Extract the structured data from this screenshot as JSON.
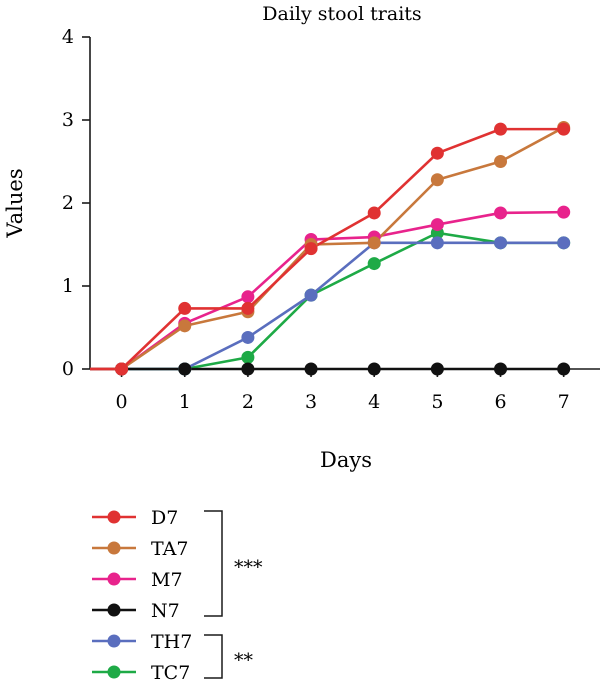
{
  "chart_data": {
    "type": "line",
    "title": "Daily stool traits",
    "xlabel": "Days",
    "ylabel": "Values",
    "xlim": [
      -0.5,
      7.1
    ],
    "ylim": [
      0,
      4
    ],
    "x_ticks": [
      "0",
      "1",
      "2",
      "3",
      "4",
      "5",
      "6",
      "7"
    ],
    "y_ticks": [
      "0",
      "1",
      "2",
      "3",
      "4"
    ],
    "x": [
      0,
      1,
      2,
      3,
      4,
      5,
      6,
      7
    ],
    "grid": false,
    "legend_position": "bottom-left",
    "series": [
      {
        "name": "D7",
        "color": "#e03232",
        "values": [
          0,
          0.73,
          0.73,
          1.45,
          1.88,
          2.6,
          2.89,
          2.89
        ]
      },
      {
        "name": "TA7",
        "color": "#c8783c",
        "values": [
          0,
          0.52,
          0.69,
          1.5,
          1.52,
          2.28,
          2.5,
          2.91
        ]
      },
      {
        "name": "M7",
        "color": "#e8238c",
        "values": [
          0,
          0.55,
          0.87,
          1.56,
          1.59,
          1.74,
          1.88,
          1.89
        ]
      },
      {
        "name": "N7",
        "color": "#111111",
        "values": [
          0,
          0,
          0,
          0,
          0,
          0,
          0,
          0
        ]
      },
      {
        "name": "TH7",
        "color": "#5a6ebe",
        "values": [
          0,
          0,
          0.38,
          0.89,
          1.52,
          1.52,
          1.52,
          1.52
        ]
      },
      {
        "name": "TC7",
        "color": "#1eaa46",
        "values": [
          0,
          0,
          0.14,
          0.89,
          1.27,
          1.64,
          1.52,
          1.52
        ]
      }
    ],
    "annotations": [
      {
        "text": "***",
        "groups": [
          "D7",
          "TA7",
          "M7",
          "N7"
        ]
      },
      {
        "text": "**",
        "groups": [
          "TH7",
          "TC7"
        ]
      }
    ]
  }
}
